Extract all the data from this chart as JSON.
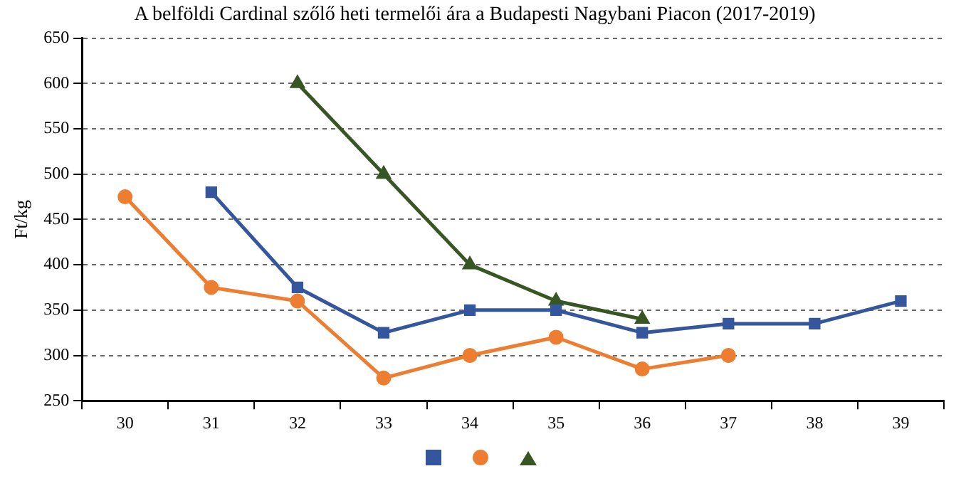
{
  "chart_data": {
    "type": "line",
    "title": "A belföldi Cardinal szőlő heti termelői ára a Budapesti Nagybani Piacon (2017-2019)",
    "ylabel": "Ft/kg",
    "categories": [
      "30",
      "31",
      "32",
      "33",
      "34",
      "35",
      "36",
      "37",
      "38",
      "39"
    ],
    "series": [
      {
        "color": "#34569c",
        "marker": "square",
        "values": [
          null,
          480,
          375,
          325,
          350,
          350,
          325,
          335,
          335,
          360
        ]
      },
      {
        "color": "#ed7d31",
        "marker": "circle",
        "values": [
          475,
          375,
          360,
          275,
          300,
          320,
          285,
          300,
          null,
          null
        ]
      },
      {
        "color": "#375623",
        "marker": "triangle",
        "values": [
          null,
          null,
          600,
          500,
          400,
          360,
          340,
          null,
          null,
          null
        ]
      }
    ],
    "ylim": [
      250,
      650
    ],
    "yticks": [
      250,
      300,
      350,
      400,
      450,
      500,
      550,
      600,
      650
    ],
    "grid": "y",
    "line_style": "solid"
  }
}
